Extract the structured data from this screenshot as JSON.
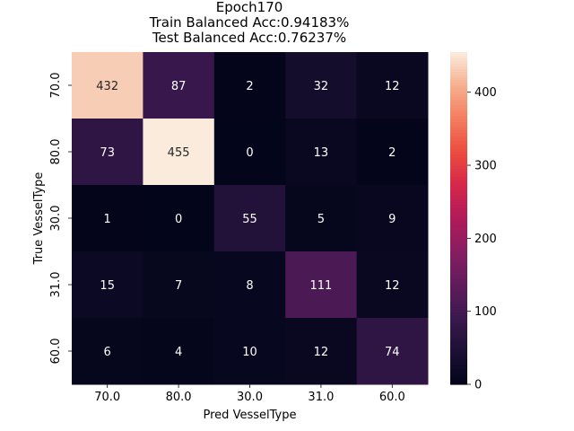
{
  "chart_data": {
    "type": "heatmap",
    "title_lines": [
      "Epoch170",
      "Train Balanced Acc:0.94183%",
      "Test Balanced Acc:0.76237%"
    ],
    "xlabel": "Pred VesselType",
    "ylabel": "True VesselType",
    "x_categories": [
      "70.0",
      "80.0",
      "30.0",
      "31.0",
      "60.0"
    ],
    "y_categories": [
      "70.0",
      "80.0",
      "30.0",
      "31.0",
      "60.0"
    ],
    "values": [
      [
        432,
        87,
        2,
        32,
        12
      ],
      [
        73,
        455,
        0,
        13,
        2
      ],
      [
        1,
        0,
        55,
        5,
        9
      ],
      [
        15,
        7,
        8,
        111,
        12
      ],
      [
        6,
        4,
        10,
        12,
        74
      ]
    ],
    "colorbar": {
      "colormap": "rocket",
      "vmin": 0,
      "vmax": 455,
      "ticks": [
        0,
        100,
        200,
        300,
        400
      ]
    },
    "grid": false
  }
}
